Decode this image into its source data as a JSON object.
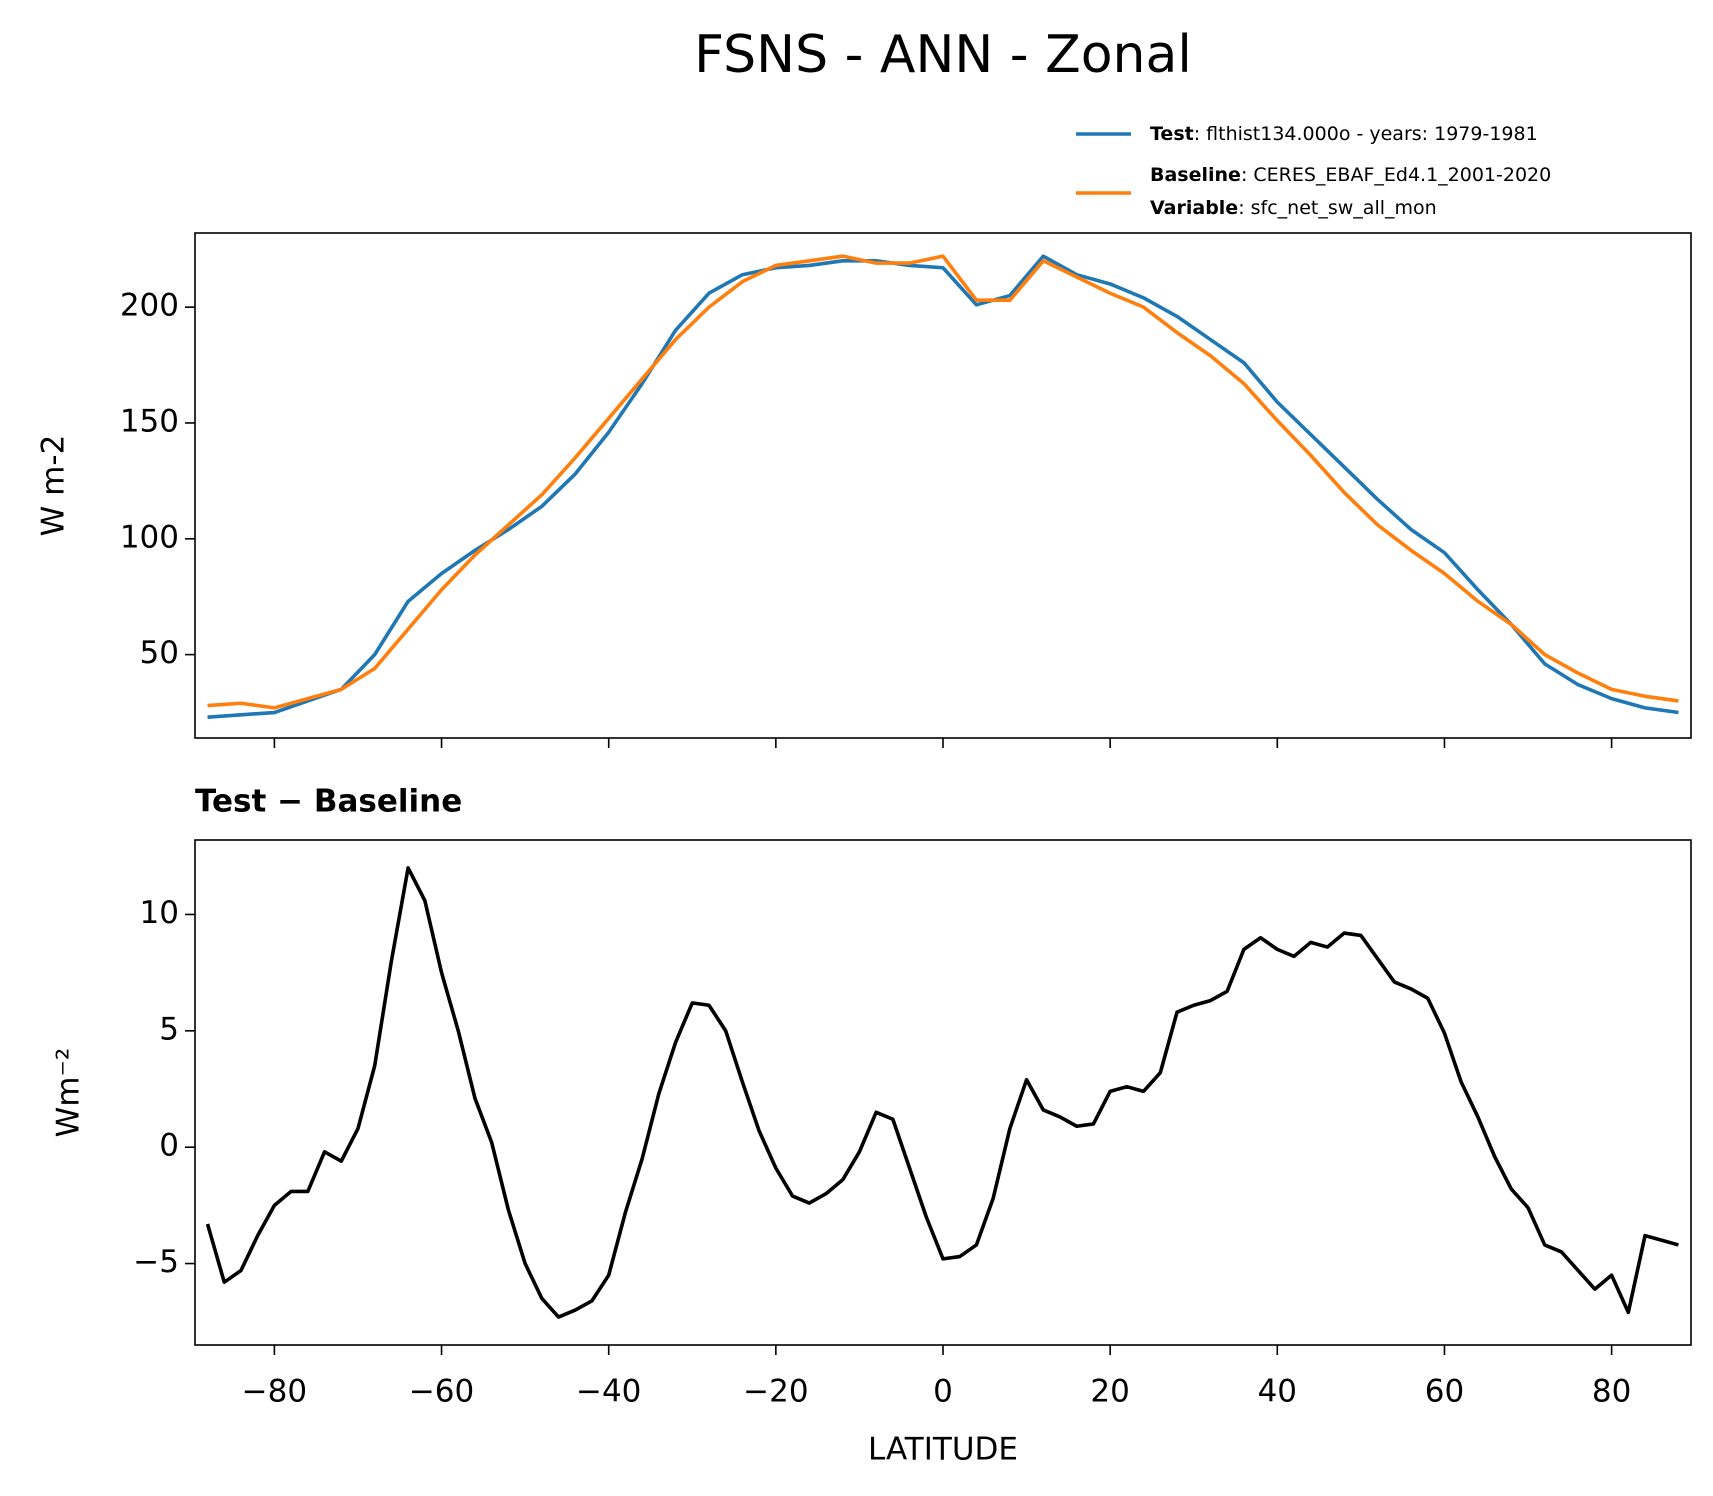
{
  "title": "FSNS - ANN - Zonal",
  "chart_data": [
    {
      "type": "line",
      "ylabel": "W m-2",
      "x": [
        -88,
        -84,
        -80,
        -76,
        -72,
        -68,
        -64,
        -60,
        -56,
        -52,
        -48,
        -44,
        -40,
        -36,
        -32,
        -28,
        -24,
        -20,
        -16,
        -12,
        -8,
        -4,
        0,
        4,
        8,
        12,
        16,
        20,
        24,
        28,
        32,
        36,
        40,
        44,
        48,
        52,
        56,
        60,
        64,
        68,
        72,
        76,
        80,
        84,
        88
      ],
      "series": [
        {
          "name": "Test",
          "detail": ": flthist134.000o - years: 1979-1981",
          "color": "#1f77b4",
          "values": [
            23,
            24,
            25,
            30,
            35,
            50,
            73,
            85,
            95,
            104,
            114,
            128,
            146,
            167,
            190,
            206,
            214,
            217,
            218,
            220,
            220,
            218,
            217,
            201,
            205,
            222,
            214,
            210,
            204,
            196,
            186,
            176,
            159,
            145,
            131,
            117,
            104,
            94,
            78,
            63,
            46,
            37,
            31,
            27,
            25
          ]
        },
        {
          "name": "Baseline",
          "detail": ": CERES_EBAF_Ed4.1_2001-2020",
          "color": "#ff7f0e",
          "values": [
            28,
            29,
            27,
            31,
            35,
            44,
            61,
            78,
            93,
            106,
            119,
            135,
            152,
            169,
            186,
            200,
            211,
            218,
            220,
            222,
            219,
            219,
            222,
            203,
            203,
            220,
            213,
            206,
            200,
            189,
            179,
            167,
            151,
            136,
            120,
            106,
            95,
            85,
            73,
            63,
            50,
            42,
            35,
            32,
            30
          ]
        }
      ],
      "legend_extra": {
        "name": "Variable",
        "detail": ": sfc_net_sw_all_mon"
      },
      "xlim": [
        -89.5,
        89.5
      ],
      "xticks": [
        -80,
        -60,
        -40,
        -20,
        0,
        20,
        40,
        60,
        80
      ],
      "show_xtick_labels": false,
      "ylim": [
        14,
        232
      ],
      "yticks": [
        50,
        100,
        150,
        200
      ]
    },
    {
      "type": "line",
      "title": "Test − Baseline",
      "ylabel": "Wm⁻²",
      "xlabel": "LATITUDE",
      "x": [
        -88,
        -86,
        -84,
        -82,
        -80,
        -78,
        -76,
        -74,
        -72,
        -70,
        -68,
        -66,
        -64,
        -62,
        -60,
        -58,
        -56,
        -54,
        -52,
        -50,
        -48,
        -46,
        -44,
        -42,
        -40,
        -38,
        -36,
        -34,
        -32,
        -30,
        -28,
        -26,
        -24,
        -22,
        -20,
        -18,
        -16,
        -14,
        -12,
        -10,
        -8,
        -6,
        -4,
        -2,
        0,
        2,
        4,
        6,
        8,
        10,
        12,
        14,
        16,
        18,
        20,
        22,
        24,
        26,
        28,
        30,
        32,
        34,
        36,
        38,
        40,
        42,
        44,
        46,
        48,
        50,
        52,
        54,
        56,
        58,
        60,
        62,
        64,
        66,
        68,
        70,
        72,
        74,
        76,
        78,
        80,
        82,
        84,
        86,
        88
      ],
      "series": [
        {
          "color": "#000000",
          "values": [
            -3.3,
            -5.8,
            -5.3,
            -3.8,
            -2.5,
            -1.9,
            -1.9,
            -0.2,
            -0.6,
            0.8,
            3.5,
            8,
            12,
            10.6,
            7.5,
            5,
            2.1,
            0.2,
            -2.7,
            -5,
            -6.5,
            -7.3,
            -7,
            -6.6,
            -5.5,
            -2.8,
            -0.5,
            2.3,
            4.5,
            6.2,
            6.1,
            5,
            2.8,
            0.7,
            -0.9,
            -2.1,
            -2.4,
            -2,
            -1.4,
            -0.2,
            1.5,
            1.2,
            -0.9,
            -3,
            -4.8,
            -4.7,
            -4.2,
            -2.2,
            0.8,
            2.9,
            1.6,
            1.3,
            0.9,
            1,
            2.4,
            2.6,
            2.4,
            3.2,
            5.8,
            6.1,
            6.3,
            6.7,
            8.5,
            9,
            8.5,
            8.2,
            8.8,
            8.6,
            9.2,
            9.1,
            8.1,
            7.1,
            6.8,
            6.4,
            4.9,
            2.8,
            1.3,
            -0.4,
            -1.8,
            -2.6,
            -4.2,
            -4.5,
            -5.3,
            -6.1,
            -5.5,
            -7.1,
            -3.8,
            -4,
            -4.2
          ]
        }
      ],
      "xlim": [
        -89.5,
        89.5
      ],
      "xticks": [
        {
          "value": -80,
          "label": "−80"
        },
        {
          "value": -60,
          "label": "−60"
        },
        {
          "value": -40,
          "label": "−40"
        },
        {
          "value": -20,
          "label": "−20"
        },
        0,
        20,
        40,
        60,
        80
      ],
      "show_xtick_labels": true,
      "ylim": [
        -8.5,
        13.2
      ],
      "yticks": [
        {
          "value": -5,
          "label": "−5"
        },
        0,
        5,
        10
      ]
    }
  ]
}
